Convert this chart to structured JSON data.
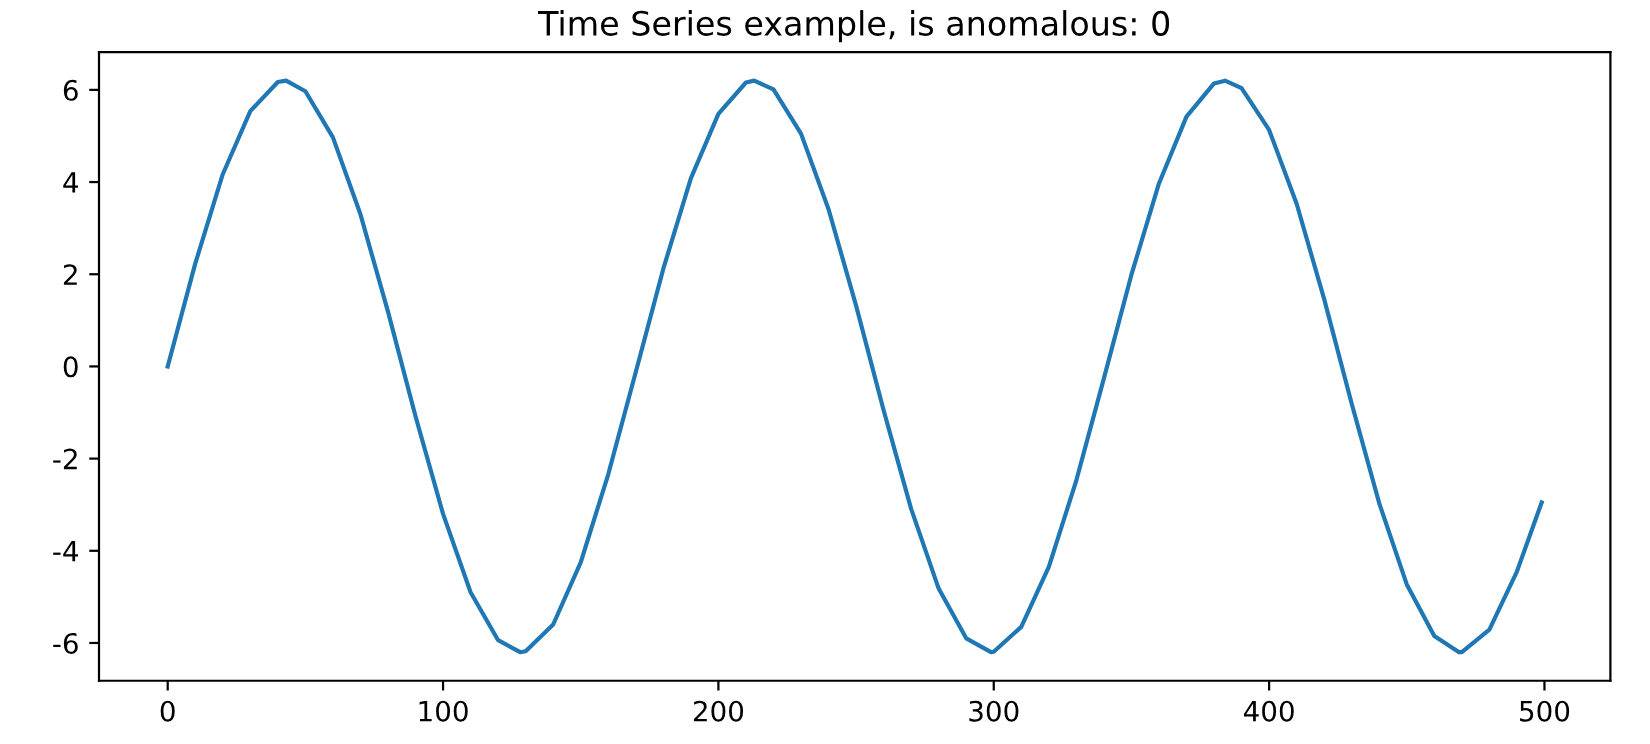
{
  "chart_data": {
    "type": "line",
    "title": "Time Series example, is anomalous: 0",
    "x": [
      0,
      10,
      20,
      30,
      40,
      43,
      50,
      60,
      70,
      80,
      90,
      100,
      110,
      120,
      128,
      130,
      140,
      150,
      160,
      170,
      180,
      190,
      200,
      210,
      213,
      220,
      230,
      240,
      250,
      260,
      270,
      280,
      290,
      299,
      300,
      310,
      320,
      330,
      340,
      350,
      360,
      370,
      380,
      384,
      390,
      400,
      410,
      420,
      430,
      440,
      450,
      460,
      469,
      470,
      480,
      490,
      499
    ],
    "series": [
      {
        "color": "#1f77b4",
        "values": [
          0,
          2.23,
          4.17,
          5.54,
          6.17,
          6.2,
          5.97,
          4.97,
          3.3,
          1.19,
          -1.08,
          -3.2,
          -4.9,
          -5.94,
          -6.2,
          -6.18,
          -5.6,
          -4.25,
          -2.34,
          -0.12,
          2.12,
          4.08,
          5.48,
          6.16,
          6.2,
          6.01,
          5.05,
          3.41,
          1.32,
          -0.95,
          -3.09,
          -4.82,
          -5.9,
          -6.2,
          -6.19,
          -5.65,
          -4.35,
          -2.47,
          -0.26,
          1.99,
          3.97,
          5.42,
          6.14,
          6.2,
          6.04,
          5.13,
          3.53,
          1.46,
          -0.81,
          -2.97,
          -4.73,
          -5.85,
          -6.2,
          -6.2,
          -5.71,
          -4.45,
          -2.95
        ]
      }
    ],
    "xlim": [
      -24.95,
      523.95
    ],
    "ylim": [
      -6.82,
      6.82
    ],
    "xticks": [
      0,
      100,
      200,
      300,
      400,
      500
    ],
    "yticks": [
      -6,
      -4,
      -2,
      0,
      2,
      4,
      6
    ],
    "grid": false,
    "legend": false,
    "marker": "none",
    "line_style": "solid"
  }
}
